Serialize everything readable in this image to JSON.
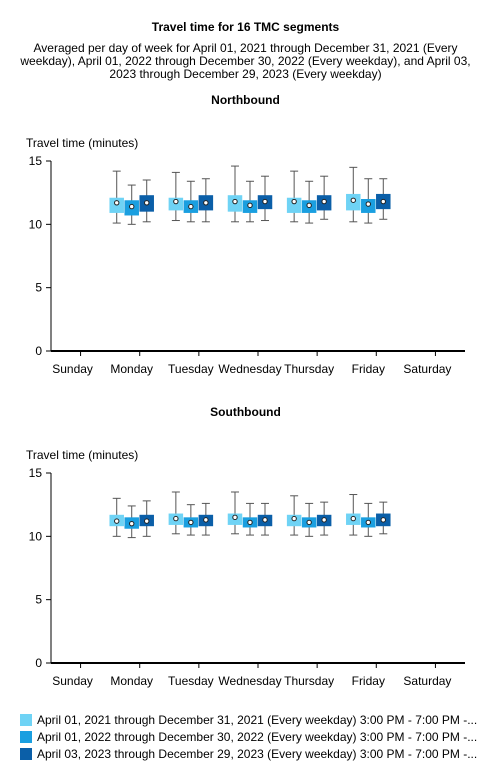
{
  "title": "Travel time for 16 TMC segments",
  "subtitle": "Averaged per day of week for April 01, 2021 through December 31, 2021 (Every weekday), April 01, 2022 through December 30, 2022 (Every weekday), and April 03, 2023 through December 29, 2023 (Every weekday)",
  "legend": [
    {
      "label": "April 01, 2021 through December 31, 2021 (Every weekday) 3:00 PM - 7:00 PM -...",
      "color": "#6fd3f5"
    },
    {
      "label": "April 01, 2022 through December 30, 2022 (Every weekday) 3:00 PM - 7:00 PM -...",
      "color": "#1a9fe0"
    },
    {
      "label": "April 03, 2023 through December 29, 2023 (Every weekday) 3:00 PM - 7:00 PM -...",
      "color": "#0b5fa8"
    }
  ],
  "chart_data": [
    {
      "type": "box",
      "title": "Northbound",
      "ylabel": "Travel time (minutes)",
      "xlabel": "",
      "ylim": [
        0,
        15
      ],
      "yticks": [
        0,
        5,
        10,
        15
      ],
      "categories": [
        "Sunday",
        "Monday",
        "Tuesday",
        "Wednesday",
        "Thursday",
        "Friday",
        "Saturday"
      ],
      "series": [
        {
          "values": [
            null,
            {
              "min": 10.1,
              "q1": 10.9,
              "median": 11.7,
              "q3": 12.1,
              "max": 14.2
            },
            {
              "min": 10.3,
              "q1": 11.1,
              "median": 11.8,
              "q3": 12.1,
              "max": 14.1
            },
            {
              "min": 10.2,
              "q1": 11.0,
              "median": 11.8,
              "q3": 12.3,
              "max": 14.6
            },
            {
              "min": 10.2,
              "q1": 10.9,
              "median": 11.8,
              "q3": 12.1,
              "max": 14.2
            },
            {
              "min": 10.2,
              "q1": 11.1,
              "median": 11.9,
              "q3": 12.4,
              "max": 14.5
            },
            null
          ]
        },
        {
          "values": [
            null,
            {
              "min": 10.0,
              "q1": 10.7,
              "median": 11.4,
              "q3": 11.9,
              "max": 13.1
            },
            {
              "min": 10.2,
              "q1": 10.9,
              "median": 11.4,
              "q3": 11.9,
              "max": 13.4
            },
            {
              "min": 10.2,
              "q1": 10.9,
              "median": 11.5,
              "q3": 11.9,
              "max": 13.4
            },
            {
              "min": 10.1,
              "q1": 10.9,
              "median": 11.5,
              "q3": 11.9,
              "max": 13.4
            },
            {
              "min": 10.1,
              "q1": 10.9,
              "median": 11.6,
              "q3": 12.0,
              "max": 13.6
            },
            null
          ]
        },
        {
          "values": [
            null,
            {
              "min": 10.2,
              "q1": 11.0,
              "median": 11.7,
              "q3": 12.3,
              "max": 13.5
            },
            {
              "min": 10.2,
              "q1": 11.1,
              "median": 11.7,
              "q3": 12.3,
              "max": 13.6
            },
            {
              "min": 10.3,
              "q1": 11.2,
              "median": 11.8,
              "q3": 12.3,
              "max": 13.8
            },
            {
              "min": 10.4,
              "q1": 11.1,
              "median": 11.8,
              "q3": 12.3,
              "max": 13.8
            },
            {
              "min": 10.4,
              "q1": 11.2,
              "median": 11.8,
              "q3": 12.4,
              "max": 13.6
            },
            null
          ]
        }
      ]
    },
    {
      "type": "box",
      "title": "Southbound",
      "ylabel": "Travel time (minutes)",
      "xlabel": "",
      "ylim": [
        0,
        15
      ],
      "yticks": [
        0,
        5,
        10,
        15
      ],
      "categories": [
        "Sunday",
        "Monday",
        "Tuesday",
        "Wednesday",
        "Thursday",
        "Friday",
        "Saturday"
      ],
      "series": [
        {
          "values": [
            null,
            {
              "min": 10.0,
              "q1": 10.8,
              "median": 11.2,
              "q3": 11.7,
              "max": 13.0
            },
            {
              "min": 10.2,
              "q1": 10.9,
              "median": 11.4,
              "q3": 11.8,
              "max": 13.5
            },
            {
              "min": 10.2,
              "q1": 10.9,
              "median": 11.5,
              "q3": 11.8,
              "max": 13.5
            },
            {
              "min": 10.1,
              "q1": 10.8,
              "median": 11.4,
              "q3": 11.7,
              "max": 13.2
            },
            {
              "min": 10.1,
              "q1": 10.9,
              "median": 11.4,
              "q3": 11.8,
              "max": 13.3
            },
            null
          ]
        },
        {
          "values": [
            null,
            {
              "min": 9.9,
              "q1": 10.6,
              "median": 11.0,
              "q3": 11.5,
              "max": 12.4
            },
            {
              "min": 10.1,
              "q1": 10.7,
              "median": 11.1,
              "q3": 11.5,
              "max": 12.5
            },
            {
              "min": 10.1,
              "q1": 10.7,
              "median": 11.1,
              "q3": 11.5,
              "max": 12.6
            },
            {
              "min": 10.0,
              "q1": 10.7,
              "median": 11.1,
              "q3": 11.5,
              "max": 12.6
            },
            {
              "min": 10.0,
              "q1": 10.7,
              "median": 11.1,
              "q3": 11.5,
              "max": 12.6
            },
            null
          ]
        },
        {
          "values": [
            null,
            {
              "min": 10.0,
              "q1": 10.8,
              "median": 11.2,
              "q3": 11.7,
              "max": 12.8
            },
            {
              "min": 10.1,
              "q1": 10.8,
              "median": 11.3,
              "q3": 11.7,
              "max": 12.6
            },
            {
              "min": 10.1,
              "q1": 10.8,
              "median": 11.3,
              "q3": 11.7,
              "max": 12.6
            },
            {
              "min": 10.1,
              "q1": 10.8,
              "median": 11.3,
              "q3": 11.7,
              "max": 12.7
            },
            {
              "min": 10.2,
              "q1": 10.8,
              "median": 11.3,
              "q3": 11.8,
              "max": 12.7
            },
            null
          ]
        }
      ]
    }
  ]
}
